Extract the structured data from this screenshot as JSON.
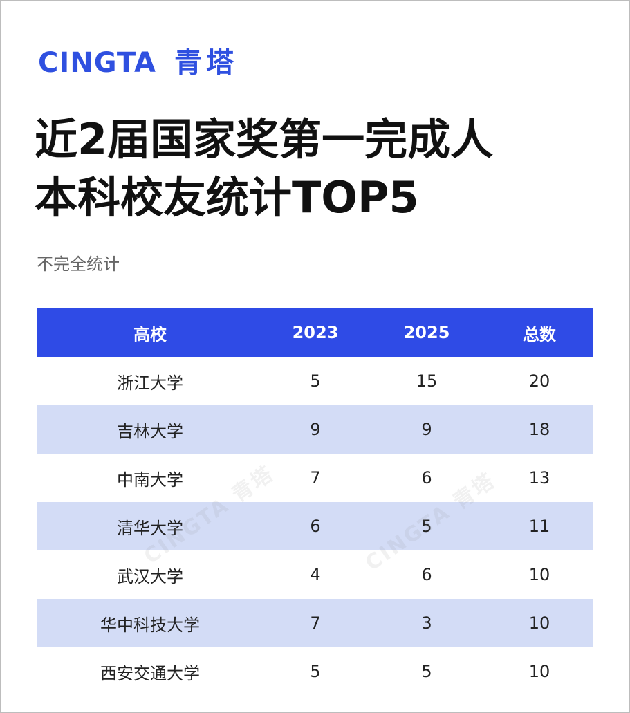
{
  "header": {
    "logo_en": "CINGTA",
    "logo_cn": "青塔"
  },
  "title": [
    "近2届国家奖第一完成人",
    "本科校友统计TOP5"
  ],
  "subtitle": "不完全统计",
  "watermark": "CINGTA 青塔",
  "table": {
    "columns": [
      "高校",
      "2023",
      "2025",
      "总数"
    ],
    "rows": [
      [
        "浙江大学",
        5,
        15,
        20
      ],
      [
        "吉林大学",
        9,
        9,
        18
      ],
      [
        "中南大学",
        7,
        6,
        13
      ],
      [
        "清华大学",
        6,
        5,
        11
      ],
      [
        "武汉大学",
        4,
        6,
        10
      ],
      [
        "华中科技大学",
        7,
        3,
        10
      ],
      [
        "西安交通大学",
        5,
        5,
        10
      ]
    ]
  }
}
